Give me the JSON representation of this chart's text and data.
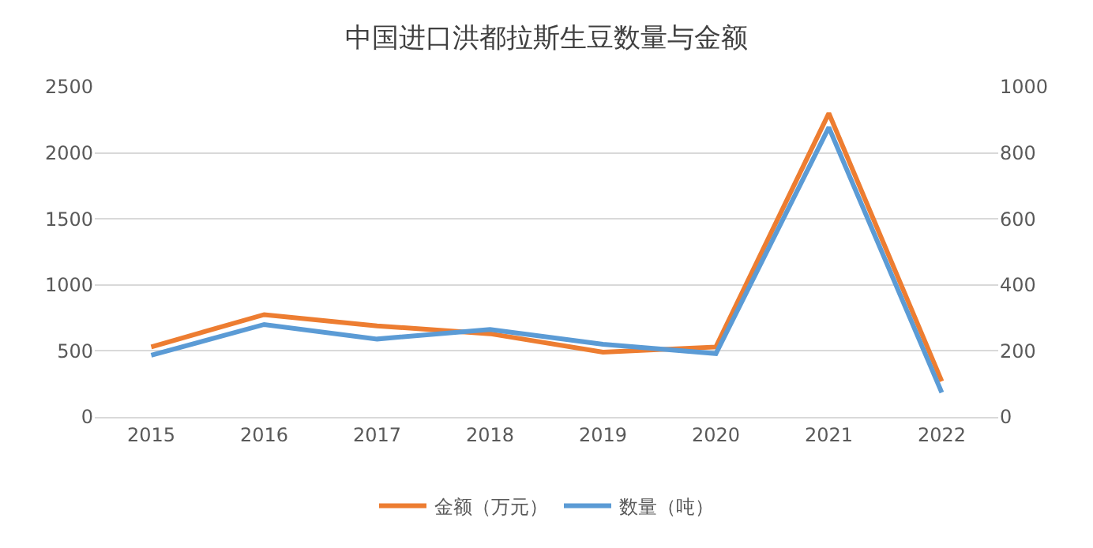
{
  "chart_data": {
    "type": "line",
    "title": "中国进口洪都拉斯生豆数量与金额",
    "categories": [
      "2015",
      "2016",
      "2017",
      "2018",
      "2019",
      "2020",
      "2021",
      "2022"
    ],
    "series": [
      {
        "name": "金额（万元）",
        "color": "#ed7d31",
        "values": [
          530,
          775,
          690,
          630,
          490,
          530,
          2300,
          270
        ]
      },
      {
        "name": "数量（吨）",
        "color": "#5b9bd5",
        "axis": "y2",
        "values": [
          187,
          280,
          236,
          265,
          220,
          192,
          877,
          74
        ]
      }
    ],
    "ylim": [
      0,
      2500
    ],
    "yticks": [
      0,
      500,
      1000,
      1500,
      2000,
      2500
    ],
    "y2lim": [
      0,
      1000
    ],
    "y2ticks": [
      0,
      200,
      400,
      600,
      800,
      1000
    ],
    "grid": "y",
    "legend": "bottom",
    "marker": "none",
    "line_style": "solid"
  }
}
